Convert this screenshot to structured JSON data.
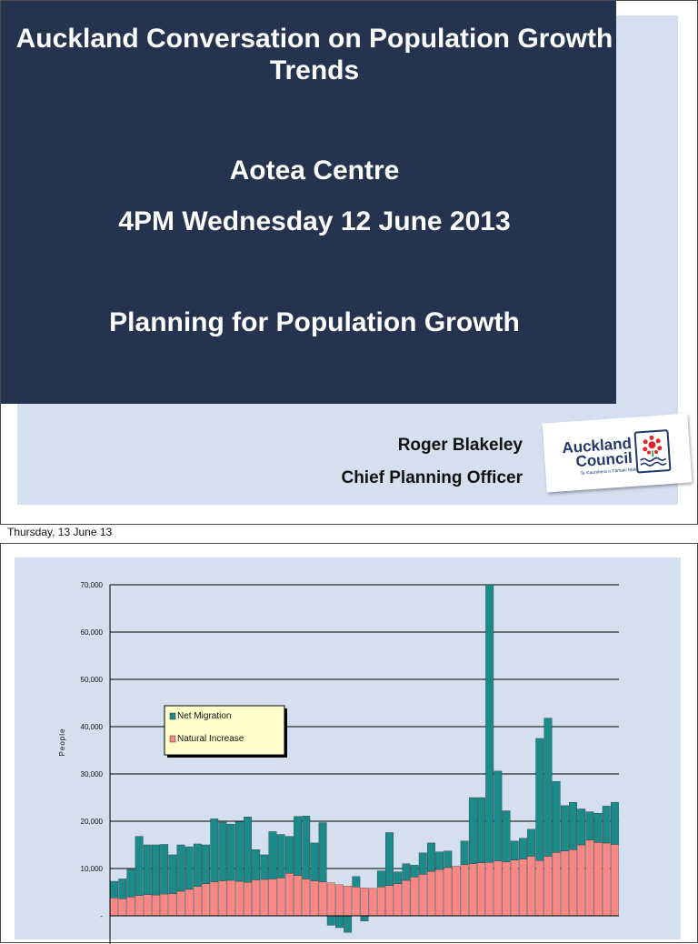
{
  "slide1": {
    "title": "Auckland Conversation on Population Growth Trends",
    "venue": "Aotea Centre",
    "datetime": "4PM Wednesday 12 June 2013",
    "topic": "Planning for Population Growth",
    "presenter_name": "Roger Blakeley",
    "presenter_role": "Chief Planning Officer",
    "logo": {
      "line1": "Auckland",
      "line2": "Council",
      "tagline": "Te Kaunihera o Tāmaki Makaurau"
    },
    "colors": {
      "panel": "#24344f",
      "background": "#d4dff0",
      "logo_blue": "#213a6b",
      "logo_red": "#e0262d"
    }
  },
  "caption": "Thursday, 13 June 13",
  "slide2": {
    "chart_data": {
      "type": "bar",
      "stacked": true,
      "title": "",
      "xlabel": "",
      "ylabel": "People",
      "ylim": [
        -3000,
        70000
      ],
      "yticks": [
        0,
        10000,
        20000,
        30000,
        40000,
        50000,
        60000,
        70000
      ],
      "ytick_labels": [
        "-",
        "10,000",
        "20,000",
        "30,000",
        "40,000",
        "50,000",
        "60,000",
        "70,000"
      ],
      "grid": true,
      "legend_position": "upper-left",
      "series": [
        {
          "name": "Natural Increase",
          "color": "#f98783",
          "values": [
            3800,
            3600,
            4000,
            4300,
            4500,
            4400,
            4600,
            4700,
            5200,
            5600,
            6200,
            6800,
            7200,
            7400,
            7500,
            7300,
            7100,
            7600,
            7700,
            7800,
            8000,
            9000,
            8500,
            7800,
            7400,
            7200,
            7000,
            6600,
            6300,
            6100,
            5900,
            5800,
            6100,
            6400,
            6800,
            7500,
            8200,
            8800,
            9400,
            9800,
            10200,
            10500,
            10800,
            11000,
            11200,
            11300,
            11600,
            11400,
            11800,
            12000,
            12600,
            11700,
            12600,
            13400,
            13700,
            14000,
            15000,
            16000,
            15500,
            15400,
            15100
          ]
        },
        {
          "name": "Net Migration",
          "color": "#1b8a8a",
          "values": [
            3500,
            4200,
            5800,
            12500,
            10500,
            10600,
            10500,
            8200,
            9800,
            9000,
            9000,
            8200,
            13300,
            12400,
            11900,
            12600,
            13800,
            6400,
            5200,
            10000,
            9200,
            7800,
            12500,
            13300,
            8000,
            12500,
            -2000,
            -2500,
            -3500,
            2200,
            -1100,
            0,
            3400,
            11200,
            2500,
            3500,
            2500,
            4500,
            6000,
            3700,
            3500,
            0,
            5000,
            14000,
            13800,
            58700,
            19000,
            10800,
            4000,
            4400,
            5700,
            25800,
            29200,
            15000,
            9600,
            10000,
            7600,
            6000,
            6200,
            7800,
            8900
          ]
        }
      ]
    }
  }
}
